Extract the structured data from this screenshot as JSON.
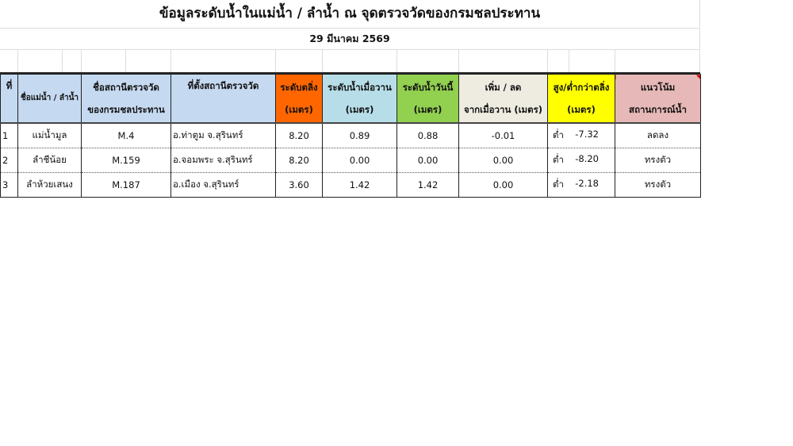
{
  "title": "ข้อมูลระดับน้ำในแม่น้ำ / ลำน้ำ  ณ จุดตรวจวัดของกรมชลประทาน",
  "date": "29 มีนาคม 2569",
  "headers": [
    {
      "l1": "ที่",
      "l2": "",
      "color": "#c5d9f1"
    },
    {
      "l1": "ชื่อแม่น้ำ / ลำน้ำ",
      "l2": "",
      "color": "#c5d9f1"
    },
    {
      "l1": "ชื่อสถานีตรวจวัด",
      "l2": "ของกรมชลประทาน",
      "color": "#c5d9f1"
    },
    {
      "l1": "ที่ตั้งสถานีตรวจวัด",
      "l2": "",
      "color": "#c5d9f1"
    },
    {
      "l1": "ระดับตลิ่ง",
      "l2": "(เมตร)",
      "color": "#ff6600"
    },
    {
      "l1": "ระดับน้ำเมื่อวาน",
      "l2": "(เมตร)",
      "color": "#b7dee8"
    },
    {
      "l1": "ระดับน้ำวันนี้",
      "l2": "(เมตร)",
      "color": "#92d050"
    },
    {
      "l1": "เพิ่ม / ลด",
      "l2": "จากเมื่อวาน (เมตร)",
      "color": "#eeece1"
    },
    {
      "l1": "สูง/ต่ำกว่าตลิ่ง",
      "l2": "(เมตร)",
      "color": "#ffff00"
    },
    {
      "l1": "แนวโน้ม",
      "l2": "สถานการณ์น้ำ",
      "color": "#e6b8b7"
    }
  ],
  "rows": [
    {
      "no": "1",
      "river": "แม่น้ำมูล",
      "station": "M.4",
      "location": "อ.ท่าตูม  จ.สุรินทร์",
      "bank": "8.20",
      "yesterday": "0.89",
      "today": "0.88",
      "change": "-0.01",
      "hl": "ต่ำ",
      "diff": "-7.32",
      "trend": "ลดลง"
    },
    {
      "no": "2",
      "river": "ลำชีน้อย",
      "station": "M.159",
      "location": "อ.จอมพระ  จ.สุรินทร์",
      "bank": "8.20",
      "yesterday": "0.00",
      "today": "0.00",
      "change": "0.00",
      "hl": "ต่ำ",
      "diff": "-8.20",
      "trend": "ทรงตัว"
    },
    {
      "no": "3",
      "river": "ลำห้วยเสนง",
      "station": "M.187",
      "location": "อ.เมือง  จ.สุรินทร์",
      "bank": "3.60",
      "yesterday": "1.42",
      "today": "1.42",
      "change": "0.00",
      "hl": "ต่ำ",
      "diff": "-2.18",
      "trend": "ทรงตัว"
    }
  ]
}
